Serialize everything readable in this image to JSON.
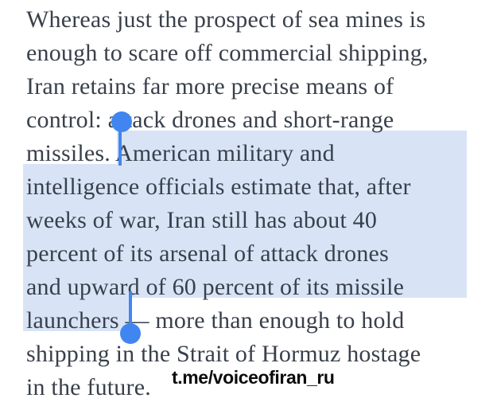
{
  "page": {
    "watermark": "t.me/voiceofiran_ru",
    "colors": {
      "background": "#ffffff",
      "text": "#39404b",
      "selection_highlight": "#d8e4f6",
      "selection_handle": "#4186f0",
      "watermark_text": "#0b0b0b"
    }
  },
  "article": {
    "lines": [
      "Whereas just the prospect of sea mines is",
      "enough to scare off commercial shipping,",
      "Iran retains far more precise means of",
      "control: attack drones and short-range",
      "missiles. American military and",
      "intelligence officials estimate that, after",
      "weeks of war, Iran still has about 40",
      "percent of its arsenal of attack drones",
      "and upward of 60 percent of its missile",
      "launchers — more than enough to hold",
      "shipping in the Strait of Hormuz hostage",
      "in the future."
    ],
    "selection": {
      "selected_text": "American military and intelligence officials estimate that, after weeks of war, Iran still has about 40 percent of its arsenal of attack drones and upward of 60 percent of its missile launchers",
      "start_word": "American",
      "end_word": "launchers"
    }
  }
}
